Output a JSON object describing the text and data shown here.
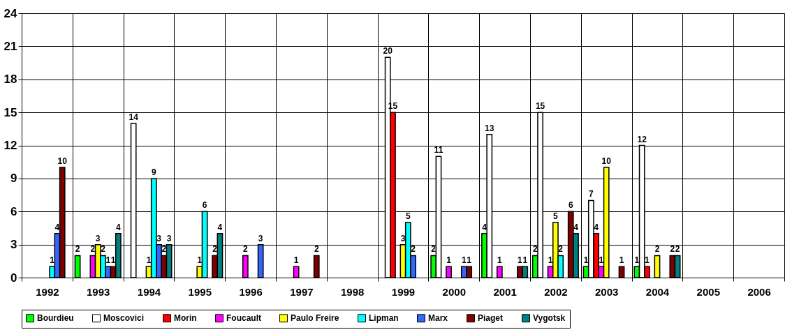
{
  "chart_data": {
    "type": "bar",
    "categories": [
      "1992",
      "1993",
      "1994",
      "1995",
      "1996",
      "1997",
      "1998",
      "1999",
      "2000",
      "2001",
      "2002",
      "2003",
      "2004",
      "2005",
      "2006"
    ],
    "series": [
      {
        "name": "Bourdieu",
        "color": "#00ff00",
        "values": [
          null,
          2,
          null,
          null,
          null,
          null,
          null,
          null,
          2,
          4,
          2,
          1,
          1,
          null,
          null
        ]
      },
      {
        "name": "Moscovici",
        "color": "#ffffff",
        "values": [
          null,
          null,
          14,
          null,
          null,
          null,
          null,
          20,
          11,
          13,
          15,
          7,
          12,
          null,
          null
        ]
      },
      {
        "name": "Morin",
        "color": "#ff0000",
        "values": [
          null,
          null,
          null,
          null,
          null,
          null,
          null,
          15,
          null,
          null,
          null,
          4,
          1,
          null,
          null
        ]
      },
      {
        "name": "Foucault",
        "color": "#ff00ff",
        "values": [
          null,
          2,
          null,
          null,
          2,
          1,
          null,
          null,
          1,
          1,
          1,
          1,
          null,
          null,
          null
        ]
      },
      {
        "name": "Paulo Freire",
        "color": "#ffff00",
        "values": [
          null,
          3,
          1,
          1,
          null,
          null,
          null,
          3,
          null,
          null,
          5,
          10,
          2,
          null,
          null
        ]
      },
      {
        "name": "Lipman",
        "color": "#00ffff",
        "values": [
          1,
          2,
          9,
          6,
          null,
          null,
          null,
          5,
          null,
          null,
          2,
          null,
          null,
          null,
          null
        ]
      },
      {
        "name": "Marx",
        "color": "#3366ff",
        "values": [
          4,
          1,
          3,
          null,
          3,
          null,
          null,
          2,
          1,
          null,
          null,
          null,
          null,
          null,
          null
        ]
      },
      {
        "name": "Piaget",
        "color": "#800000",
        "values": [
          10,
          1,
          2,
          2,
          null,
          2,
          null,
          null,
          1,
          1,
          6,
          1,
          2,
          null,
          null
        ]
      },
      {
        "name": "Vygotsk",
        "color": "#008080",
        "values": [
          null,
          4,
          3,
          4,
          null,
          null,
          null,
          null,
          null,
          1,
          4,
          null,
          2,
          null,
          null
        ]
      }
    ],
    "ylim": [
      0,
      24
    ],
    "yticks": [
      0,
      3,
      6,
      9,
      12,
      15,
      18,
      21,
      24
    ],
    "grid": true,
    "legend": "bottom",
    "data_labels": true
  }
}
